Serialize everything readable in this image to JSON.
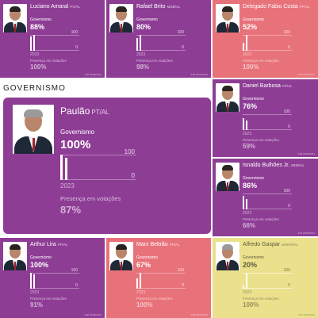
{
  "section_title": "GOVERNISMO",
  "labels": {
    "governismo": "Governismo",
    "tick_top": "100",
    "tick_bottom": "0",
    "year": "2023",
    "presenca": "Presença em votações",
    "footer": "ATÉ 05/06/2023"
  },
  "colors": {
    "purple": "#8e3d95",
    "red": "#e8727a",
    "yellow": "#ebe08c"
  },
  "cards": [
    {
      "name": "Luciano Amaral",
      "party": "PV/AL",
      "governismo": "88%",
      "governismo_value": 88,
      "presenca": "100%",
      "presenca_value": 100
    },
    {
      "name": "Rafael Brito",
      "party": "MDB/AL",
      "governismo": "80%",
      "governismo_value": 80,
      "presenca": "98%",
      "presenca_value": 98
    },
    {
      "name": "Delegado Fabio Costa",
      "party": "PP/AL",
      "governismo": "52%",
      "governismo_value": 52,
      "presenca": "100%",
      "presenca_value": 100
    },
    {
      "name": "Paulão",
      "party": "PT/AL",
      "governismo": "100%",
      "governismo_value": 100,
      "presenca": "87%",
      "presenca_value": 87
    },
    {
      "name": "Daniel Barbosa",
      "party": "PP/AL",
      "governismo": "76%",
      "governismo_value": 76,
      "presenca": "59%",
      "presenca_value": 59
    },
    {
      "name": "Isnaldo Bulhões Jr.",
      "party": "MDB/AL",
      "governismo": "86%",
      "governismo_value": 86,
      "presenca": "66%",
      "presenca_value": 66
    },
    {
      "name": "Arthur Lira",
      "party": "PP/AL",
      "governismo": "100%",
      "governismo_value": 100,
      "presenca": "91%",
      "presenca_value": 91
    },
    {
      "name": "Marx Beltrão",
      "party": "PP/AL",
      "governismo": "67%",
      "governismo_value": 67,
      "presenca": "100%",
      "presenca_value": 100
    },
    {
      "name": "Alfredo Gaspar",
      "party": "UNIÃO/AL",
      "governismo": "20%",
      "governismo_value": 20,
      "presenca": "100%",
      "presenca_value": 100
    }
  ]
}
